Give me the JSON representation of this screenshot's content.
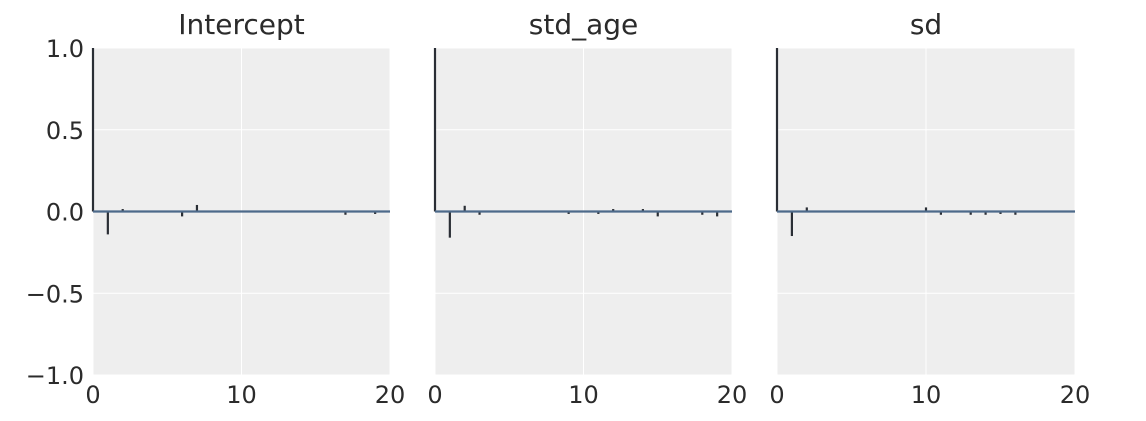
{
  "chart_data": [
    {
      "type": "bar",
      "title": "Intercept",
      "x": [
        0,
        1,
        2,
        3,
        4,
        5,
        6,
        7,
        8,
        9,
        10,
        11,
        12,
        13,
        14,
        15,
        16,
        17,
        18,
        19
      ],
      "values": [
        1.0,
        -0.14,
        0.015,
        0.0,
        0.0,
        0.0,
        -0.03,
        0.04,
        0.0,
        0.0,
        0.0,
        0.0,
        0.0,
        0.0,
        0.0,
        0.0,
        0.0,
        -0.02,
        0.0,
        -0.015
      ],
      "xlim": [
        0,
        20
      ],
      "ylim": [
        -1.0,
        1.0
      ],
      "xticks": [
        "0",
        "10",
        "20"
      ],
      "yticks": [
        "1.0",
        "0.5",
        "0.0",
        "−0.5",
        "−1.0"
      ],
      "show_yticks": true
    },
    {
      "type": "bar",
      "title": "std_age",
      "x": [
        0,
        1,
        2,
        3,
        4,
        5,
        6,
        7,
        8,
        9,
        10,
        11,
        12,
        13,
        14,
        15,
        16,
        17,
        18,
        19
      ],
      "values": [
        1.0,
        -0.16,
        0.035,
        -0.02,
        0.0,
        0.0,
        0.0,
        0.0,
        0.0,
        -0.015,
        0.0,
        -0.015,
        0.015,
        0.0,
        0.015,
        -0.03,
        0.0,
        0.0,
        -0.02,
        -0.03
      ],
      "xlim": [
        0,
        20
      ],
      "ylim": [
        -1.0,
        1.0
      ],
      "xticks": [
        "0",
        "10",
        "20"
      ],
      "yticks": [
        "1.0",
        "0.5",
        "0.0",
        "−0.5",
        "−1.0"
      ],
      "show_yticks": false
    },
    {
      "type": "bar",
      "title": "sd",
      "x": [
        0,
        1,
        2,
        3,
        4,
        5,
        6,
        7,
        8,
        9,
        10,
        11,
        12,
        13,
        14,
        15,
        16,
        17,
        18,
        19
      ],
      "values": [
        1.0,
        -0.15,
        0.025,
        0.0,
        0.0,
        0.0,
        0.0,
        0.0,
        0.0,
        0.0,
        0.025,
        -0.02,
        0.0,
        -0.02,
        -0.02,
        -0.015,
        -0.02,
        0.0,
        0.0,
        0.0
      ],
      "xlim": [
        0,
        20
      ],
      "ylim": [
        -1.0,
        1.0
      ],
      "xticks": [
        "0",
        "10",
        "20"
      ],
      "yticks": [
        "1.0",
        "0.5",
        "0.0",
        "−0.5",
        "−1.0"
      ],
      "show_yticks": false
    }
  ],
  "colors": {
    "plot_background": "#eeeeee",
    "grid": "#ffffff",
    "bars": "#2a2e35",
    "zero_line": "#4d6a8a",
    "text": "#2b2b2b"
  }
}
